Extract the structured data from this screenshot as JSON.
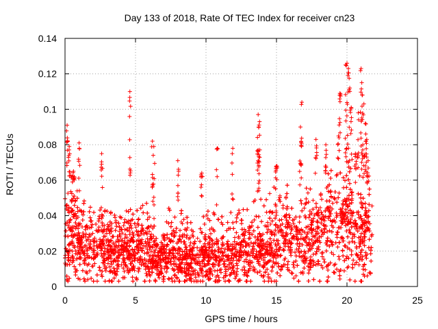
{
  "chart_data": {
    "type": "scatter",
    "title": "Day 133 of 2018, Rate Of TEC Index for receiver cn23",
    "xlabel": "GPS time / hours",
    "ylabel": "ROTI / TECUs",
    "xlim": [
      0,
      25
    ],
    "ylim": [
      0,
      0.14
    ],
    "xticks": [
      "0",
      "5",
      "10",
      "15",
      "20",
      "25"
    ],
    "yticks": [
      "0",
      "0.02",
      "0.04",
      "0.06",
      "0.08",
      "0.1",
      "0.12",
      "0.14"
    ],
    "grid": true,
    "legend": "none",
    "marker": "+",
    "color": "#ff0000",
    "data_coverage_hours": [
      0,
      21.8
    ],
    "envelope": {
      "hours": [
        0,
        0.5,
        1,
        1.5,
        2,
        2.5,
        3,
        3.5,
        4,
        4.5,
        5,
        5.5,
        6,
        6.5,
        7,
        7.5,
        8,
        8.5,
        9,
        9.5,
        10,
        10.5,
        11,
        11.5,
        12,
        12.5,
        13,
        13.5,
        14,
        14.5,
        15,
        15.5,
        16,
        16.5,
        17,
        17.5,
        18,
        18.5,
        19,
        19.5,
        20,
        20.5,
        21,
        21.5,
        21.8
      ],
      "typical_roti": [
        0.03,
        0.028,
        0.024,
        0.022,
        0.021,
        0.022,
        0.02,
        0.019,
        0.019,
        0.019,
        0.018,
        0.019,
        0.019,
        0.013,
        0.016,
        0.018,
        0.017,
        0.016,
        0.015,
        0.016,
        0.016,
        0.016,
        0.015,
        0.016,
        0.016,
        0.017,
        0.018,
        0.018,
        0.018,
        0.021,
        0.026,
        0.025,
        0.024,
        0.022,
        0.024,
        0.023,
        0.026,
        0.028,
        0.033,
        0.035,
        0.034,
        0.032,
        0.03,
        0.029,
        0.028
      ],
      "upper_roti": [
        0.068,
        0.062,
        0.052,
        0.048,
        0.046,
        0.05,
        0.045,
        0.043,
        0.044,
        0.045,
        0.045,
        0.046,
        0.05,
        0.03,
        0.044,
        0.05,
        0.048,
        0.045,
        0.044,
        0.05,
        0.048,
        0.046,
        0.044,
        0.044,
        0.045,
        0.046,
        0.046,
        0.05,
        0.055,
        0.055,
        0.06,
        0.058,
        0.058,
        0.056,
        0.058,
        0.056,
        0.06,
        0.062,
        0.068,
        0.072,
        0.07,
        0.066,
        0.064,
        0.058,
        0.05
      ]
    },
    "spikes": [
      {
        "x": 0.15,
        "y": 0.091
      },
      {
        "x": 0.3,
        "y": 0.079
      },
      {
        "x": 0.6,
        "y": 0.065
      },
      {
        "x": 1.0,
        "y": 0.081
      },
      {
        "x": 2.6,
        "y": 0.075
      },
      {
        "x": 4.6,
        "y": 0.11
      },
      {
        "x": 6.2,
        "y": 0.082
      },
      {
        "x": 6.3,
        "y": 0.079
      },
      {
        "x": 8.0,
        "y": 0.071
      },
      {
        "x": 9.7,
        "y": 0.064
      },
      {
        "x": 10.8,
        "y": 0.078
      },
      {
        "x": 11.9,
        "y": 0.078
      },
      {
        "x": 13.7,
        "y": 0.097
      },
      {
        "x": 13.8,
        "y": 0.093
      },
      {
        "x": 13.7,
        "y": 0.077
      },
      {
        "x": 15.0,
        "y": 0.068
      },
      {
        "x": 16.8,
        "y": 0.104
      },
      {
        "x": 16.7,
        "y": 0.09
      },
      {
        "x": 17.8,
        "y": 0.083
      },
      {
        "x": 19.5,
        "y": 0.109
      },
      {
        "x": 19.4,
        "y": 0.085
      },
      {
        "x": 19.9,
        "y": 0.125
      },
      {
        "x": 20.0,
        "y": 0.126
      },
      {
        "x": 20.1,
        "y": 0.123
      },
      {
        "x": 20.2,
        "y": 0.112
      },
      {
        "x": 20.3,
        "y": 0.101
      },
      {
        "x": 20.6,
        "y": 0.075
      },
      {
        "x": 21.0,
        "y": 0.123
      },
      {
        "x": 21.05,
        "y": 0.115
      },
      {
        "x": 21.1,
        "y": 0.108
      },
      {
        "x": 21.2,
        "y": 0.103
      },
      {
        "x": 21.3,
        "y": 0.092
      },
      {
        "x": 21.4,
        "y": 0.083
      },
      {
        "x": 21.5,
        "y": 0.071
      },
      {
        "x": 20.8,
        "y": 0.098
      },
      {
        "x": 18.5,
        "y": 0.08
      }
    ]
  }
}
